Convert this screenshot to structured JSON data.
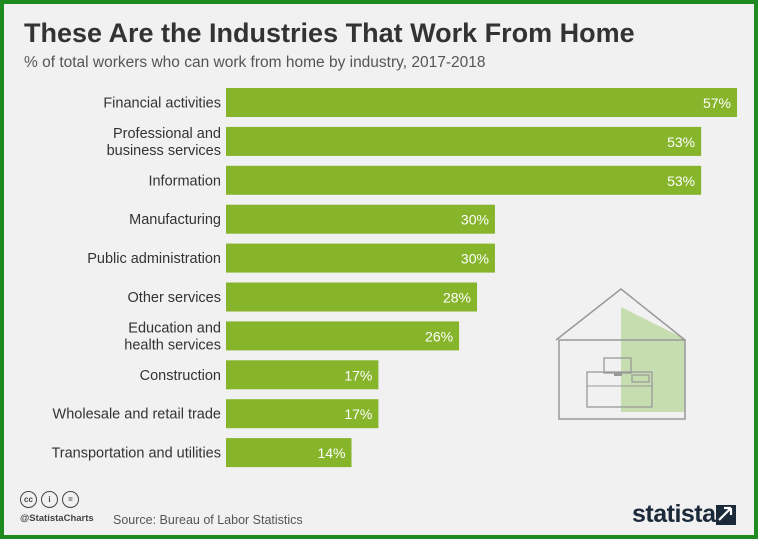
{
  "header": {
    "title": "These Are the Industries That Work From Home",
    "subtitle": "% of total workers who can work from home by industry, 2017-2018"
  },
  "colors": {
    "bar": "#86b42b",
    "background": "#f1f1f1",
    "frame": "#1f8a1f",
    "label": "#333333",
    "value_label": "#ffffff",
    "house_stroke": "#999999",
    "house_fill": "#c6ddb0"
  },
  "chart_data": {
    "type": "bar",
    "orientation": "horizontal",
    "categories": [
      [
        "Financial activities"
      ],
      [
        "Professional and",
        "business services"
      ],
      [
        "Information"
      ],
      [
        "Manufacturing"
      ],
      [
        "Public administration"
      ],
      [
        "Other services"
      ],
      [
        "Education and",
        "health services"
      ],
      [
        "Construction"
      ],
      [
        "Wholesale and retail trade"
      ],
      [
        "Transportation and utilities"
      ]
    ],
    "values": [
      57,
      53,
      53,
      30,
      30,
      28,
      26,
      17,
      17,
      14
    ],
    "value_labels": [
      "57%",
      "53%",
      "53%",
      "30%",
      "30%",
      "28%",
      "26%",
      "17%",
      "17%",
      "14%"
    ],
    "xlim": [
      0,
      57
    ],
    "grid": false,
    "legend": "none"
  },
  "illustration": {
    "icon": "house-with-desk-icon"
  },
  "footer": {
    "license_icons": [
      "cc-icon",
      "attribution-icon",
      "no-derivatives-icon"
    ],
    "cc_glyphs": [
      "cc",
      "i",
      "="
    ],
    "handle": "@StatistaCharts",
    "source": "Source: Bureau of Labor Statistics",
    "brand": "statista"
  }
}
